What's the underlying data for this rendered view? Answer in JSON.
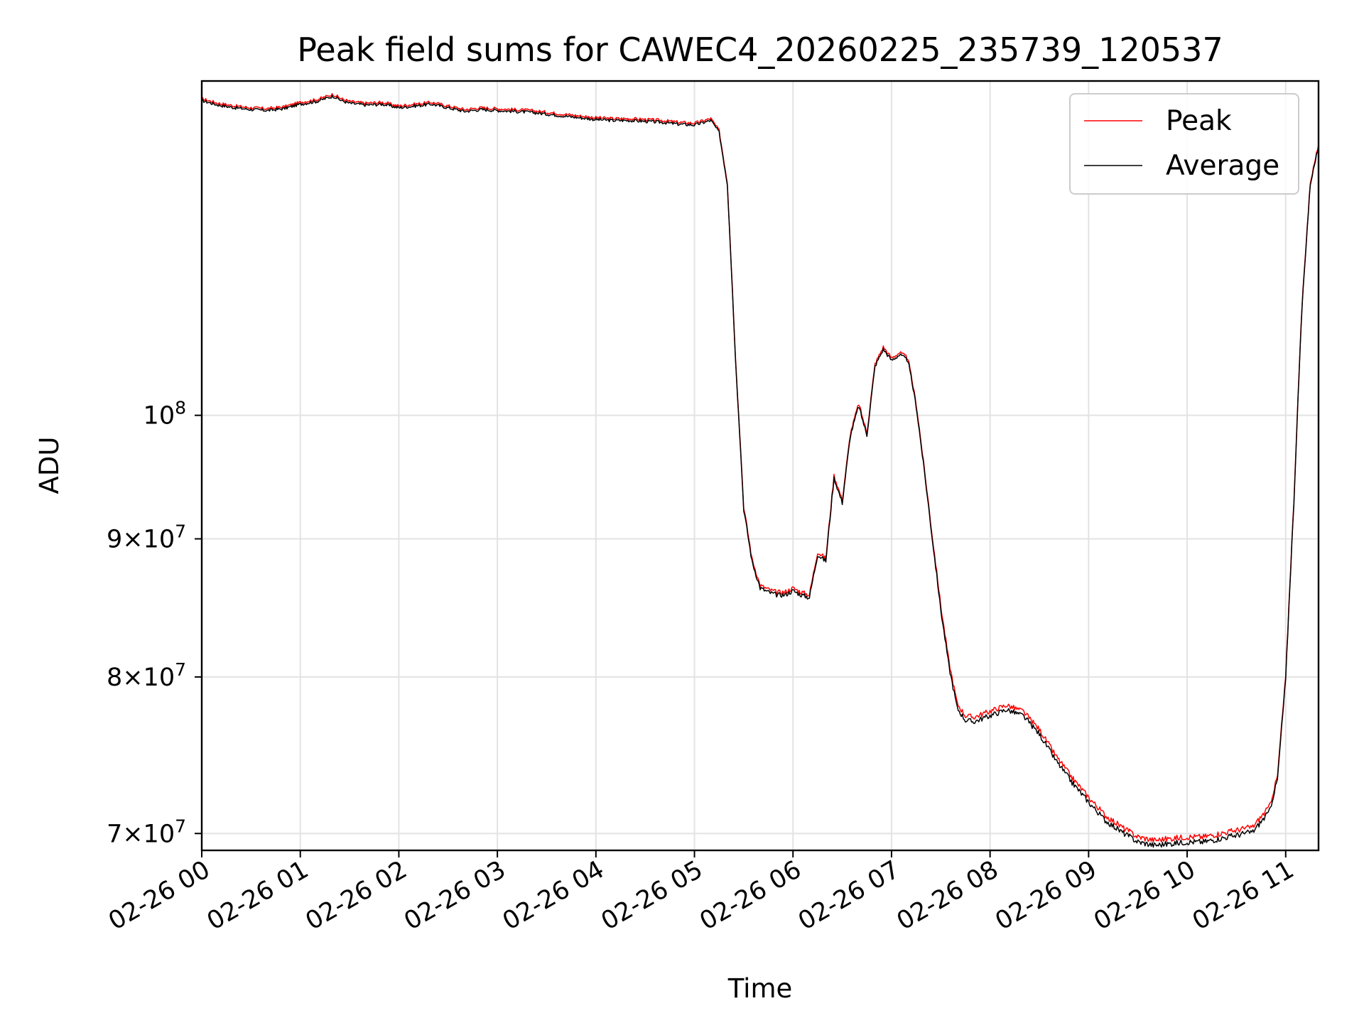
{
  "chart_data": {
    "type": "line",
    "title": "Peak field sums for CAWEC4_20260225_235739_120537",
    "xlabel": "Time",
    "ylabel": "ADU",
    "x_unit": "2026-02-26 time of day (HH:MM)",
    "xlim": [
      "2026-02-26 00:00",
      "2026-02-26 11:20"
    ],
    "ylim": [
      69000000,
      133000000
    ],
    "yscale": "log",
    "grid": true,
    "legend_position": "upper right",
    "x_tick_values": [
      "2026-02-26 00:00",
      "2026-02-26 01:00",
      "2026-02-26 02:00",
      "2026-02-26 03:00",
      "2026-02-26 04:00",
      "2026-02-26 05:00",
      "2026-02-26 06:00",
      "2026-02-26 07:00",
      "2026-02-26 08:00",
      "2026-02-26 09:00",
      "2026-02-26 10:00",
      "2026-02-26 11:00"
    ],
    "x_tick_labels": [
      "02-26 00",
      "02-26 01",
      "02-26 02",
      "02-26 03",
      "02-26 04",
      "02-26 05",
      "02-26 06",
      "02-26 07",
      "02-26 08",
      "02-26 09",
      "02-26 10",
      "02-26 11"
    ],
    "y_ticks": [
      {
        "value": 70000000,
        "mantissa": "7",
        "exponent": "7"
      },
      {
        "value": 80000000,
        "mantissa": "8",
        "exponent": "7"
      },
      {
        "value": 90000000,
        "mantissa": "9",
        "exponent": "7"
      },
      {
        "value": 100000000,
        "mantissa": "",
        "exponent": "8"
      }
    ],
    "tick_base": "10",
    "tick_times": "×",
    "series": [
      {
        "name": "Peak",
        "color": "#ff0000",
        "linewidth": 1.2
      },
      {
        "name": "Average",
        "color": "#000000",
        "linewidth": 1.2
      }
    ],
    "x": [
      "00:00",
      "00:10",
      "00:20",
      "00:30",
      "00:40",
      "00:50",
      "01:00",
      "01:10",
      "01:20",
      "01:25",
      "01:30",
      "01:40",
      "01:50",
      "02:00",
      "02:10",
      "02:20",
      "02:30",
      "02:40",
      "02:50",
      "03:00",
      "03:10",
      "03:20",
      "03:30",
      "03:40",
      "03:50",
      "04:00",
      "04:10",
      "04:20",
      "04:30",
      "04:40",
      "04:50",
      "05:00",
      "05:10",
      "05:15",
      "05:20",
      "05:25",
      "05:30",
      "05:35",
      "05:40",
      "05:45",
      "05:50",
      "05:55",
      "06:00",
      "06:05",
      "06:10",
      "06:15",
      "06:20",
      "06:25",
      "06:30",
      "06:35",
      "06:40",
      "06:45",
      "06:50",
      "06:55",
      "07:00",
      "07:05",
      "07:10",
      "07:15",
      "07:20",
      "07:25",
      "07:30",
      "07:35",
      "07:40",
      "07:45",
      "07:50",
      "08:00",
      "08:10",
      "08:20",
      "08:30",
      "08:40",
      "08:50",
      "09:00",
      "09:10",
      "09:20",
      "09:30",
      "09:40",
      "09:50",
      "10:00",
      "10:10",
      "10:20",
      "10:30",
      "10:40",
      "10:50",
      "10:55",
      "11:00",
      "11:05",
      "11:10",
      "11:15",
      "11:20"
    ],
    "peak": [
      131.0,
      130.5,
      130.2,
      130.0,
      129.9,
      130.1,
      130.6,
      130.9,
      131.5,
      131.0,
      130.7,
      130.5,
      130.6,
      130.2,
      130.4,
      130.6,
      130.2,
      129.8,
      130.0,
      129.9,
      129.8,
      129.7,
      129.5,
      129.3,
      129.1,
      128.9,
      128.8,
      128.8,
      128.7,
      128.6,
      128.4,
      128.3,
      128.8,
      127.5,
      122.0,
      105.0,
      92.5,
      88.5,
      86.5,
      86.2,
      86.0,
      86.0,
      86.3,
      86.0,
      85.8,
      89.0,
      88.5,
      95.0,
      93.0,
      98.5,
      101.0,
      98.5,
      104.5,
      106.0,
      105.0,
      105.5,
      105.0,
      101.0,
      95.5,
      90.0,
      85.0,
      81.0,
      78.2,
      77.4,
      77.3,
      77.7,
      78.1,
      77.7,
      76.5,
      74.8,
      73.4,
      72.2,
      71.1,
      70.4,
      69.8,
      69.6,
      69.7,
      69.8,
      69.8,
      70.0,
      70.2,
      70.4,
      71.6,
      73.5,
      80.0,
      93.0,
      110.0,
      122.0,
      126.0
    ],
    "average": [
      130.8,
      130.3,
      130.0,
      129.8,
      129.7,
      129.9,
      130.4,
      130.7,
      131.3,
      130.8,
      130.5,
      130.3,
      130.4,
      130.0,
      130.2,
      130.4,
      130.0,
      129.6,
      129.8,
      129.7,
      129.6,
      129.5,
      129.3,
      129.1,
      128.9,
      128.7,
      128.6,
      128.6,
      128.5,
      128.4,
      128.2,
      128.1,
      128.6,
      127.3,
      121.8,
      104.8,
      92.3,
      88.3,
      86.3,
      86.0,
      85.8,
      85.8,
      86.1,
      85.8,
      85.6,
      88.8,
      88.3,
      94.8,
      92.8,
      98.3,
      100.8,
      98.3,
      104.3,
      105.8,
      104.8,
      105.3,
      104.8,
      100.8,
      95.3,
      89.8,
      84.7,
      80.7,
      77.9,
      77.1,
      77.0,
      77.4,
      77.8,
      77.4,
      76.2,
      74.5,
      73.1,
      71.9,
      70.8,
      70.1,
      69.5,
      69.3,
      69.4,
      69.5,
      69.5,
      69.7,
      69.9,
      70.1,
      71.3,
      73.3,
      79.8,
      92.8,
      109.8,
      121.8,
      125.8
    ],
    "y_value_multiplier": 1000000
  }
}
